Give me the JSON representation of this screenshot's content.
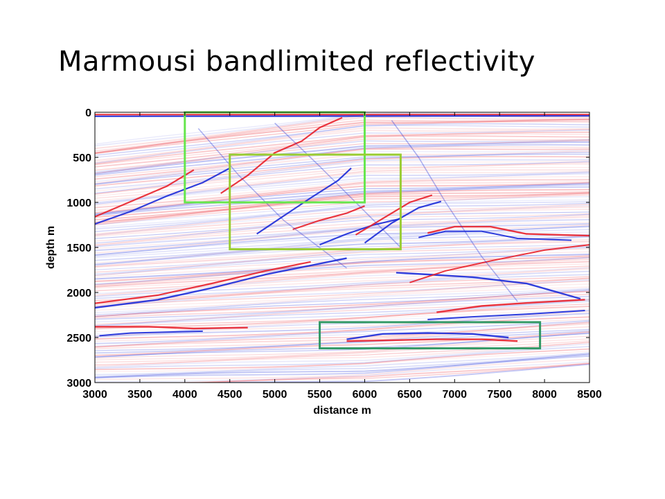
{
  "title": "Marmousi bandlimited reflectivity",
  "chart_data": {
    "type": "heatmap",
    "xlabel": "distance m",
    "ylabel": "depth m",
    "xlim": [
      3000,
      8500
    ],
    "ylim": [
      0,
      3000
    ],
    "y_inverted": true,
    "x_ticks": [
      3000,
      3500,
      4000,
      4500,
      5000,
      5500,
      6000,
      6500,
      7000,
      7500,
      8000,
      8500
    ],
    "y_ticks": [
      0,
      500,
      1000,
      1500,
      2000,
      2500,
      3000
    ],
    "colormap": {
      "positive": "#e8202a",
      "negative": "#1a2ad8",
      "zero": "#ffffff"
    },
    "annotations": [
      {
        "type": "rectangle",
        "color": "#66e64d",
        "x": [
          4000,
          6000
        ],
        "y": [
          0,
          1000
        ]
      },
      {
        "type": "rectangle",
        "color": "#99cc33",
        "x": [
          4500,
          6400
        ],
        "y": [
          470,
          1520
        ]
      },
      {
        "type": "rectangle",
        "color": "#339966",
        "x": [
          5500,
          7950
        ],
        "y": [
          2330,
          2620
        ]
      }
    ]
  }
}
